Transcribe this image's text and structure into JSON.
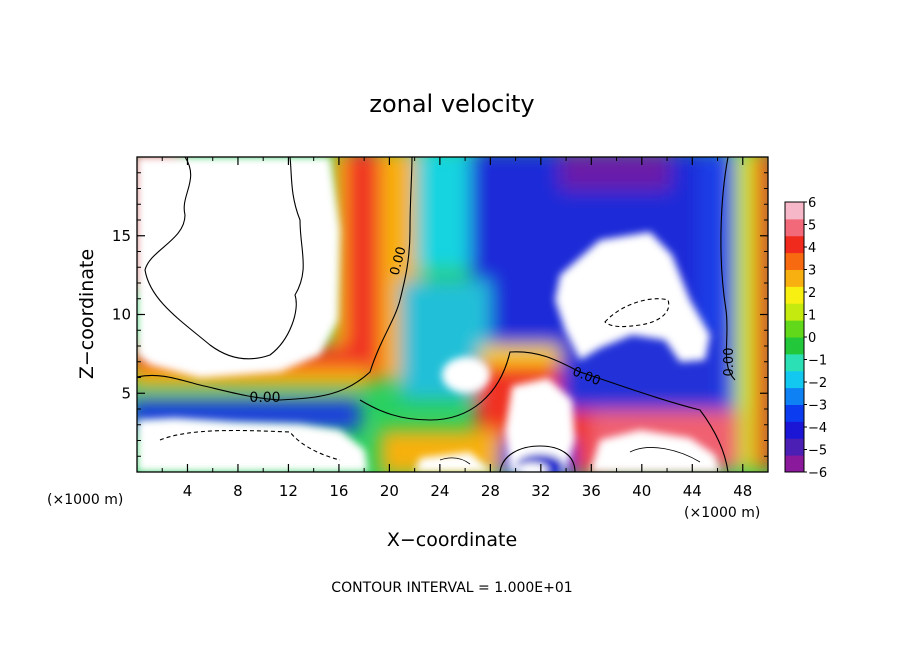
{
  "chart_data": {
    "type": "heatmap",
    "title": "zonal velocity",
    "xlabel": "X−coordinate",
    "ylabel": "Z−coordinate",
    "x_unit_left": "(×1000 m)",
    "x_unit_right": "(×1000 m)",
    "footer": "CONTOUR INTERVAL = 1.000E+01",
    "xlim": [
      0,
      50
    ],
    "ylim": [
      0,
      20
    ],
    "x_ticks": [
      4,
      8,
      12,
      16,
      20,
      24,
      28,
      32,
      36,
      40,
      44,
      48
    ],
    "x_tick_labels": [
      "4",
      "8",
      "12",
      "16",
      "20",
      "24",
      "28",
      "32",
      "36",
      "40",
      "44",
      "48"
    ],
    "y_ticks": [
      5,
      10,
      15
    ],
    "y_tick_labels": [
      "5",
      "10",
      "15"
    ],
    "colorbar": {
      "min": -6,
      "max": 6,
      "labels": [
        "6",
        "5",
        "4",
        "3",
        "2",
        "1",
        "0",
        "−1",
        "−2",
        "−3",
        "−4",
        "−5",
        "−6"
      ],
      "colors": [
        "#8a1a9b",
        "#4b1fb4",
        "#1b16d6",
        "#0b3cf0",
        "#0e82f5",
        "#12c8f0",
        "#2ae0b4",
        "#22c83a",
        "#62d81a",
        "#c4ea10",
        "#f8f010",
        "#f8b010",
        "#f86a10",
        "#f02a1c",
        "#f26a7a",
        "#f6b8c8"
      ]
    },
    "contour_labels": [
      "0.00",
      "0.00",
      "0.00",
      "0.00"
    ]
  }
}
